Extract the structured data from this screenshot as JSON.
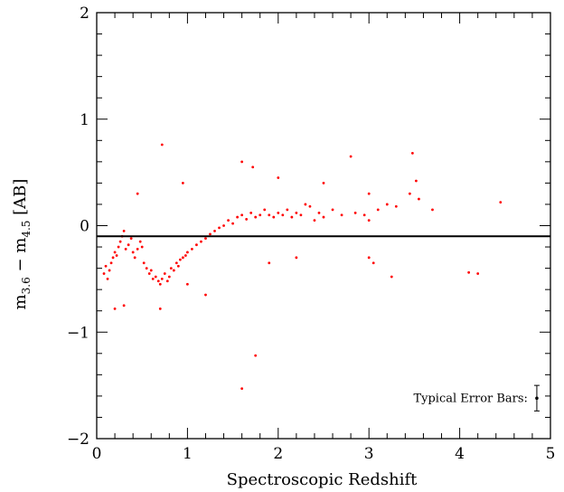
{
  "chart_data": {
    "type": "scatter",
    "title": "",
    "xlabel": "Spectroscopic Redshift",
    "ylabel_main": "m",
    "ylabel_sub1": "3.6",
    "ylabel_sep": " − ",
    "ylabel_sub2": "4.5",
    "ylabel_unit": " [AB]",
    "xlim": [
      0,
      5
    ],
    "ylim": [
      -2,
      2
    ],
    "xticks": [
      0,
      1,
      2,
      3,
      4,
      5
    ],
    "yticks": [
      -2,
      -1,
      0,
      1,
      2
    ],
    "xtick_labels": [
      "0",
      "1",
      "2",
      "3",
      "4",
      "5"
    ],
    "ytick_labels": [
      "−2",
      "−1",
      "0",
      "1",
      "2"
    ],
    "grid": false,
    "point_color": "#ff0000",
    "reference_line": {
      "y": -0.1,
      "color": "#000000"
    },
    "annotation": {
      "text": "Typical Error Bars:",
      "x": 4.85,
      "y": -1.62,
      "error": 0.12
    },
    "series": [
      {
        "points": [
          [
            0.08,
            -0.45
          ],
          [
            0.1,
            -0.38
          ],
          [
            0.12,
            -0.5
          ],
          [
            0.14,
            -0.42
          ],
          [
            0.16,
            -0.35
          ],
          [
            0.18,
            -0.3
          ],
          [
            0.2,
            -0.25
          ],
          [
            0.22,
            -0.28
          ],
          [
            0.24,
            -0.2
          ],
          [
            0.26,
            -0.15
          ],
          [
            0.28,
            -0.1
          ],
          [
            0.3,
            -0.05
          ],
          [
            0.32,
            -0.22
          ],
          [
            0.35,
            -0.18
          ],
          [
            0.38,
            -0.12
          ],
          [
            0.4,
            -0.25
          ],
          [
            0.42,
            -0.3
          ],
          [
            0.45,
            -0.22
          ],
          [
            0.48,
            -0.15
          ],
          [
            0.5,
            -0.2
          ],
          [
            0.52,
            -0.35
          ],
          [
            0.55,
            -0.4
          ],
          [
            0.58,
            -0.45
          ],
          [
            0.6,
            -0.42
          ],
          [
            0.62,
            -0.5
          ],
          [
            0.65,
            -0.48
          ],
          [
            0.68,
            -0.52
          ],
          [
            0.7,
            -0.55
          ],
          [
            0.72,
            -0.5
          ],
          [
            0.75,
            -0.45
          ],
          [
            0.78,
            -0.52
          ],
          [
            0.8,
            -0.48
          ],
          [
            0.82,
            -0.4
          ],
          [
            0.85,
            -0.42
          ],
          [
            0.88,
            -0.35
          ],
          [
            0.9,
            -0.38
          ],
          [
            0.92,
            -0.32
          ],
          [
            0.95,
            -0.3
          ],
          [
            0.98,
            -0.28
          ],
          [
            1.0,
            -0.25
          ],
          [
            1.05,
            -0.22
          ],
          [
            1.1,
            -0.18
          ],
          [
            1.15,
            -0.15
          ],
          [
            1.2,
            -0.12
          ],
          [
            1.25,
            -0.08
          ],
          [
            1.3,
            -0.05
          ],
          [
            1.35,
            -0.02
          ],
          [
            1.4,
            0.0
          ],
          [
            1.45,
            0.05
          ],
          [
            1.5,
            0.02
          ],
          [
            1.55,
            0.08
          ],
          [
            1.6,
            0.1
          ],
          [
            1.65,
            0.06
          ],
          [
            1.7,
            0.12
          ],
          [
            1.75,
            0.08
          ],
          [
            1.8,
            0.1
          ],
          [
            1.85,
            0.15
          ],
          [
            1.9,
            0.1
          ],
          [
            1.95,
            0.08
          ],
          [
            2.0,
            0.12
          ],
          [
            2.05,
            0.1
          ],
          [
            2.1,
            0.15
          ],
          [
            2.15,
            0.08
          ],
          [
            2.2,
            0.12
          ],
          [
            2.25,
            0.1
          ],
          [
            2.3,
            0.2
          ],
          [
            2.35,
            0.18
          ],
          [
            2.4,
            0.05
          ],
          [
            2.45,
            0.12
          ],
          [
            2.5,
            0.08
          ],
          [
            2.6,
            0.15
          ],
          [
            2.7,
            0.1
          ],
          [
            2.85,
            0.12
          ],
          [
            2.95,
            0.1
          ],
          [
            3.0,
            0.05
          ],
          [
            3.1,
            0.15
          ],
          [
            3.2,
            0.2
          ],
          [
            3.3,
            0.18
          ],
          [
            3.45,
            0.3
          ],
          [
            3.55,
            0.25
          ],
          [
            3.7,
            0.15
          ],
          [
            4.45,
            0.22
          ],
          [
            0.3,
            -0.75
          ],
          [
            0.2,
            -0.78
          ],
          [
            0.7,
            -0.78
          ],
          [
            1.0,
            -0.55
          ],
          [
            1.2,
            -0.65
          ],
          [
            1.75,
            -1.22
          ],
          [
            1.6,
            -1.53
          ],
          [
            0.72,
            0.76
          ],
          [
            2.8,
            0.65
          ],
          [
            3.48,
            0.68
          ],
          [
            1.6,
            0.6
          ],
          [
            1.72,
            0.55
          ],
          [
            4.1,
            -0.44
          ],
          [
            4.2,
            -0.45
          ],
          [
            3.25,
            -0.48
          ],
          [
            3.0,
            -0.3
          ],
          [
            3.05,
            -0.35
          ],
          [
            2.0,
            0.45
          ],
          [
            2.5,
            0.4
          ],
          [
            3.0,
            0.3
          ],
          [
            3.52,
            0.42
          ],
          [
            0.45,
            0.3
          ],
          [
            0.95,
            0.4
          ],
          [
            1.9,
            -0.35
          ],
          [
            2.2,
            -0.3
          ]
        ]
      }
    ]
  }
}
